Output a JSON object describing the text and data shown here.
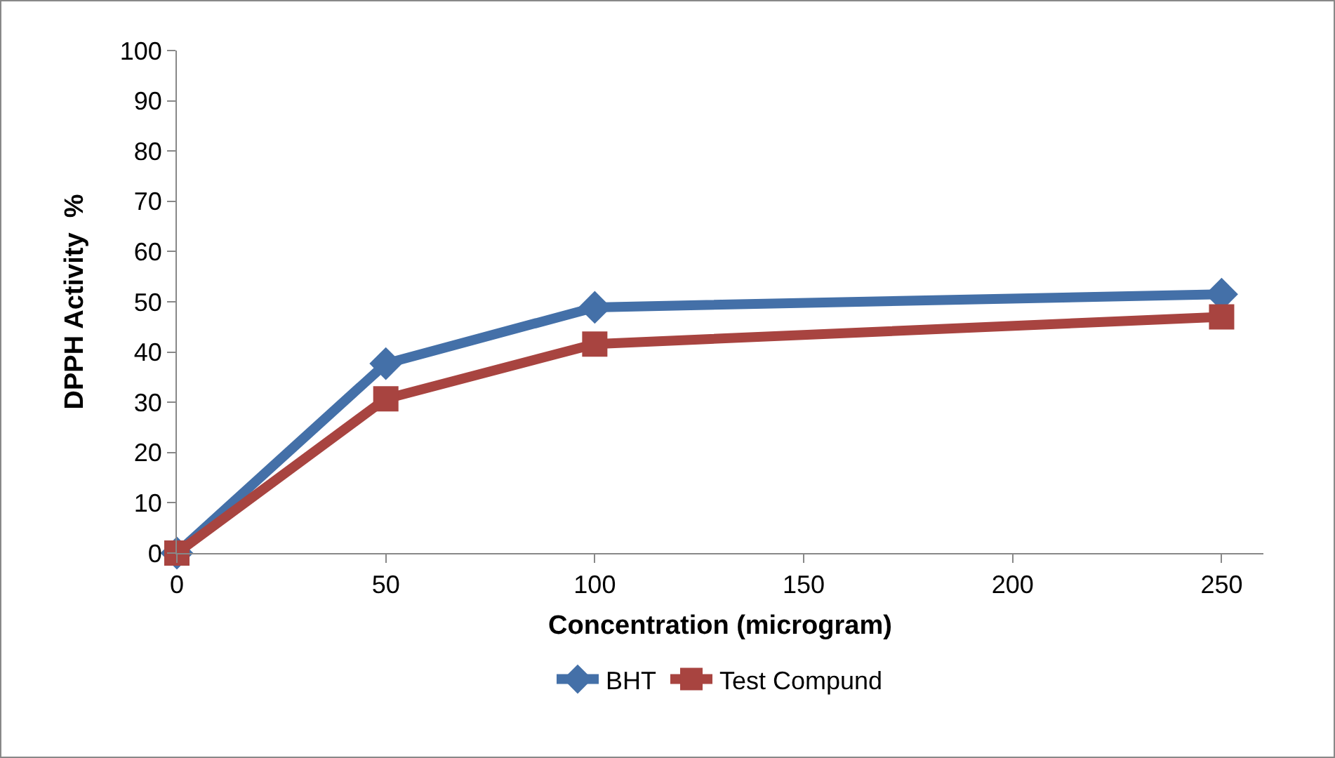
{
  "chart_data": {
    "type": "line",
    "xlabel": "Concentration (microgram)",
    "ylabel": "DPPH Activity  %",
    "x": [
      0,
      50,
      100,
      250
    ],
    "xlim": [
      0,
      260
    ],
    "xticks": [
      0,
      50,
      100,
      150,
      200,
      250
    ],
    "ylim": [
      0,
      100
    ],
    "yticks": [
      0,
      10,
      20,
      30,
      40,
      50,
      60,
      70,
      80,
      90,
      100
    ],
    "series": [
      {
        "name": "BHT",
        "color": "#4470a8",
        "marker": "diamond",
        "values": [
          0,
          37.7,
          48.9,
          51.5
        ]
      },
      {
        "name": "Test Compund",
        "color": "#a84440",
        "marker": "square",
        "values": [
          0,
          30.7,
          41.6,
          47
        ]
      }
    ],
    "grid": false,
    "legend": "bottom",
    "line_style": "solid"
  }
}
